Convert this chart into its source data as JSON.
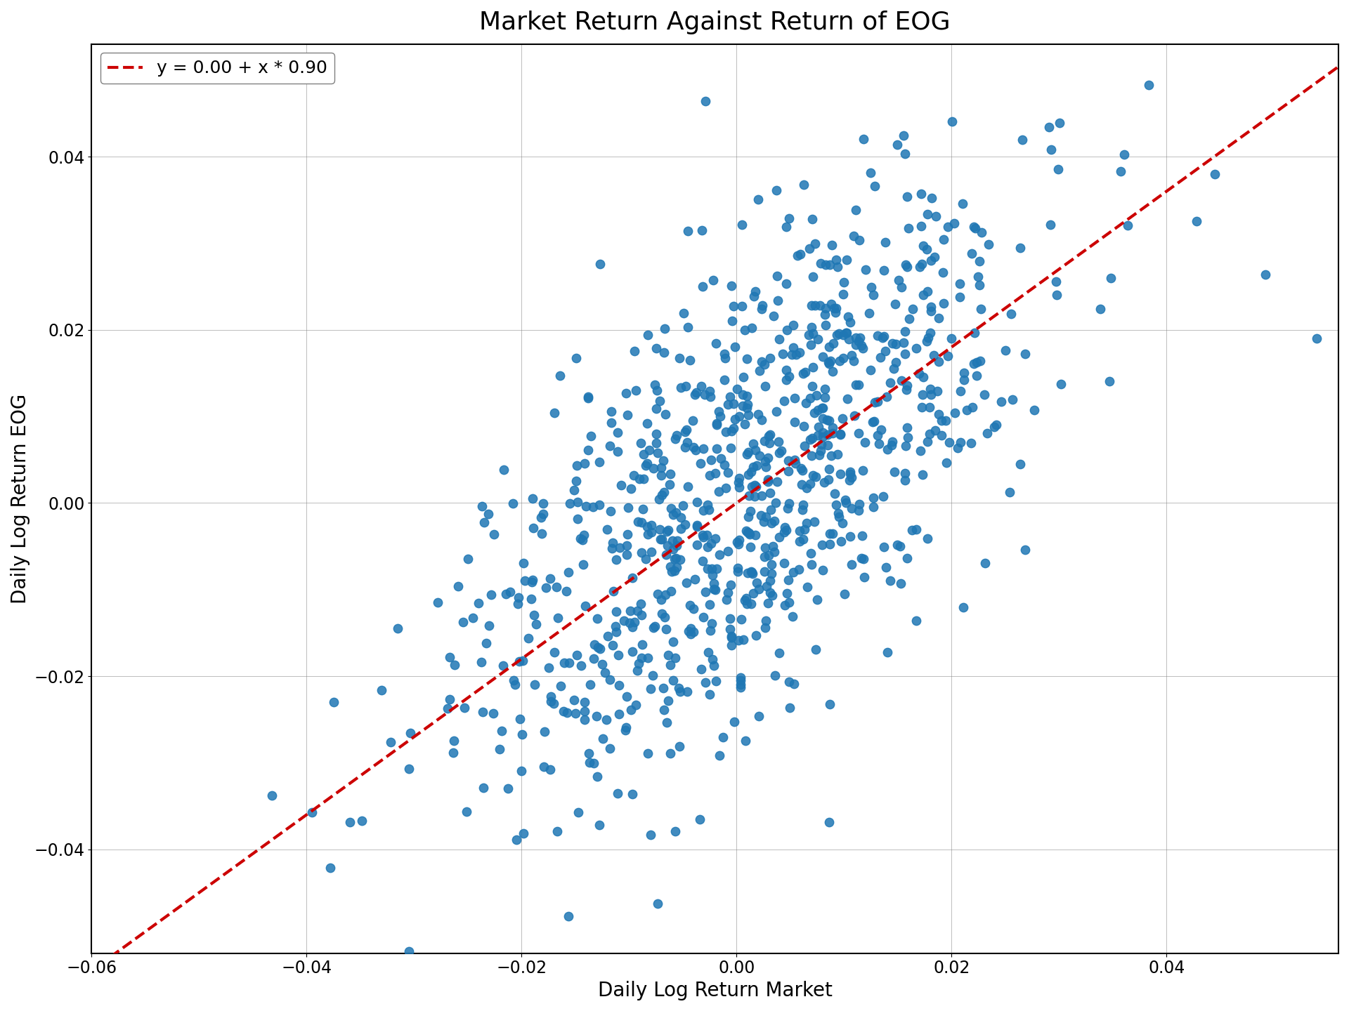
{
  "title": "Market Return Against Return of EOG",
  "xlabel": "Daily Log Return Market",
  "ylabel": "Daily Log Return EOG",
  "legend_label": "y = 0.00 + x * 0.90",
  "intercept": 0.0,
  "slope": 0.9,
  "xlim": [
    -0.06,
    0.056
  ],
  "ylim": [
    -0.052,
    0.053
  ],
  "scatter_color": "#1f77b4",
  "line_color": "#cc0000",
  "n_points": 900,
  "random_seed": 17,
  "market_std": 0.013,
  "residual_std": 0.013,
  "title_fontsize": 26,
  "label_fontsize": 20,
  "tick_fontsize": 17,
  "legend_fontsize": 18,
  "marker_size": 80,
  "line_width": 3.0
}
